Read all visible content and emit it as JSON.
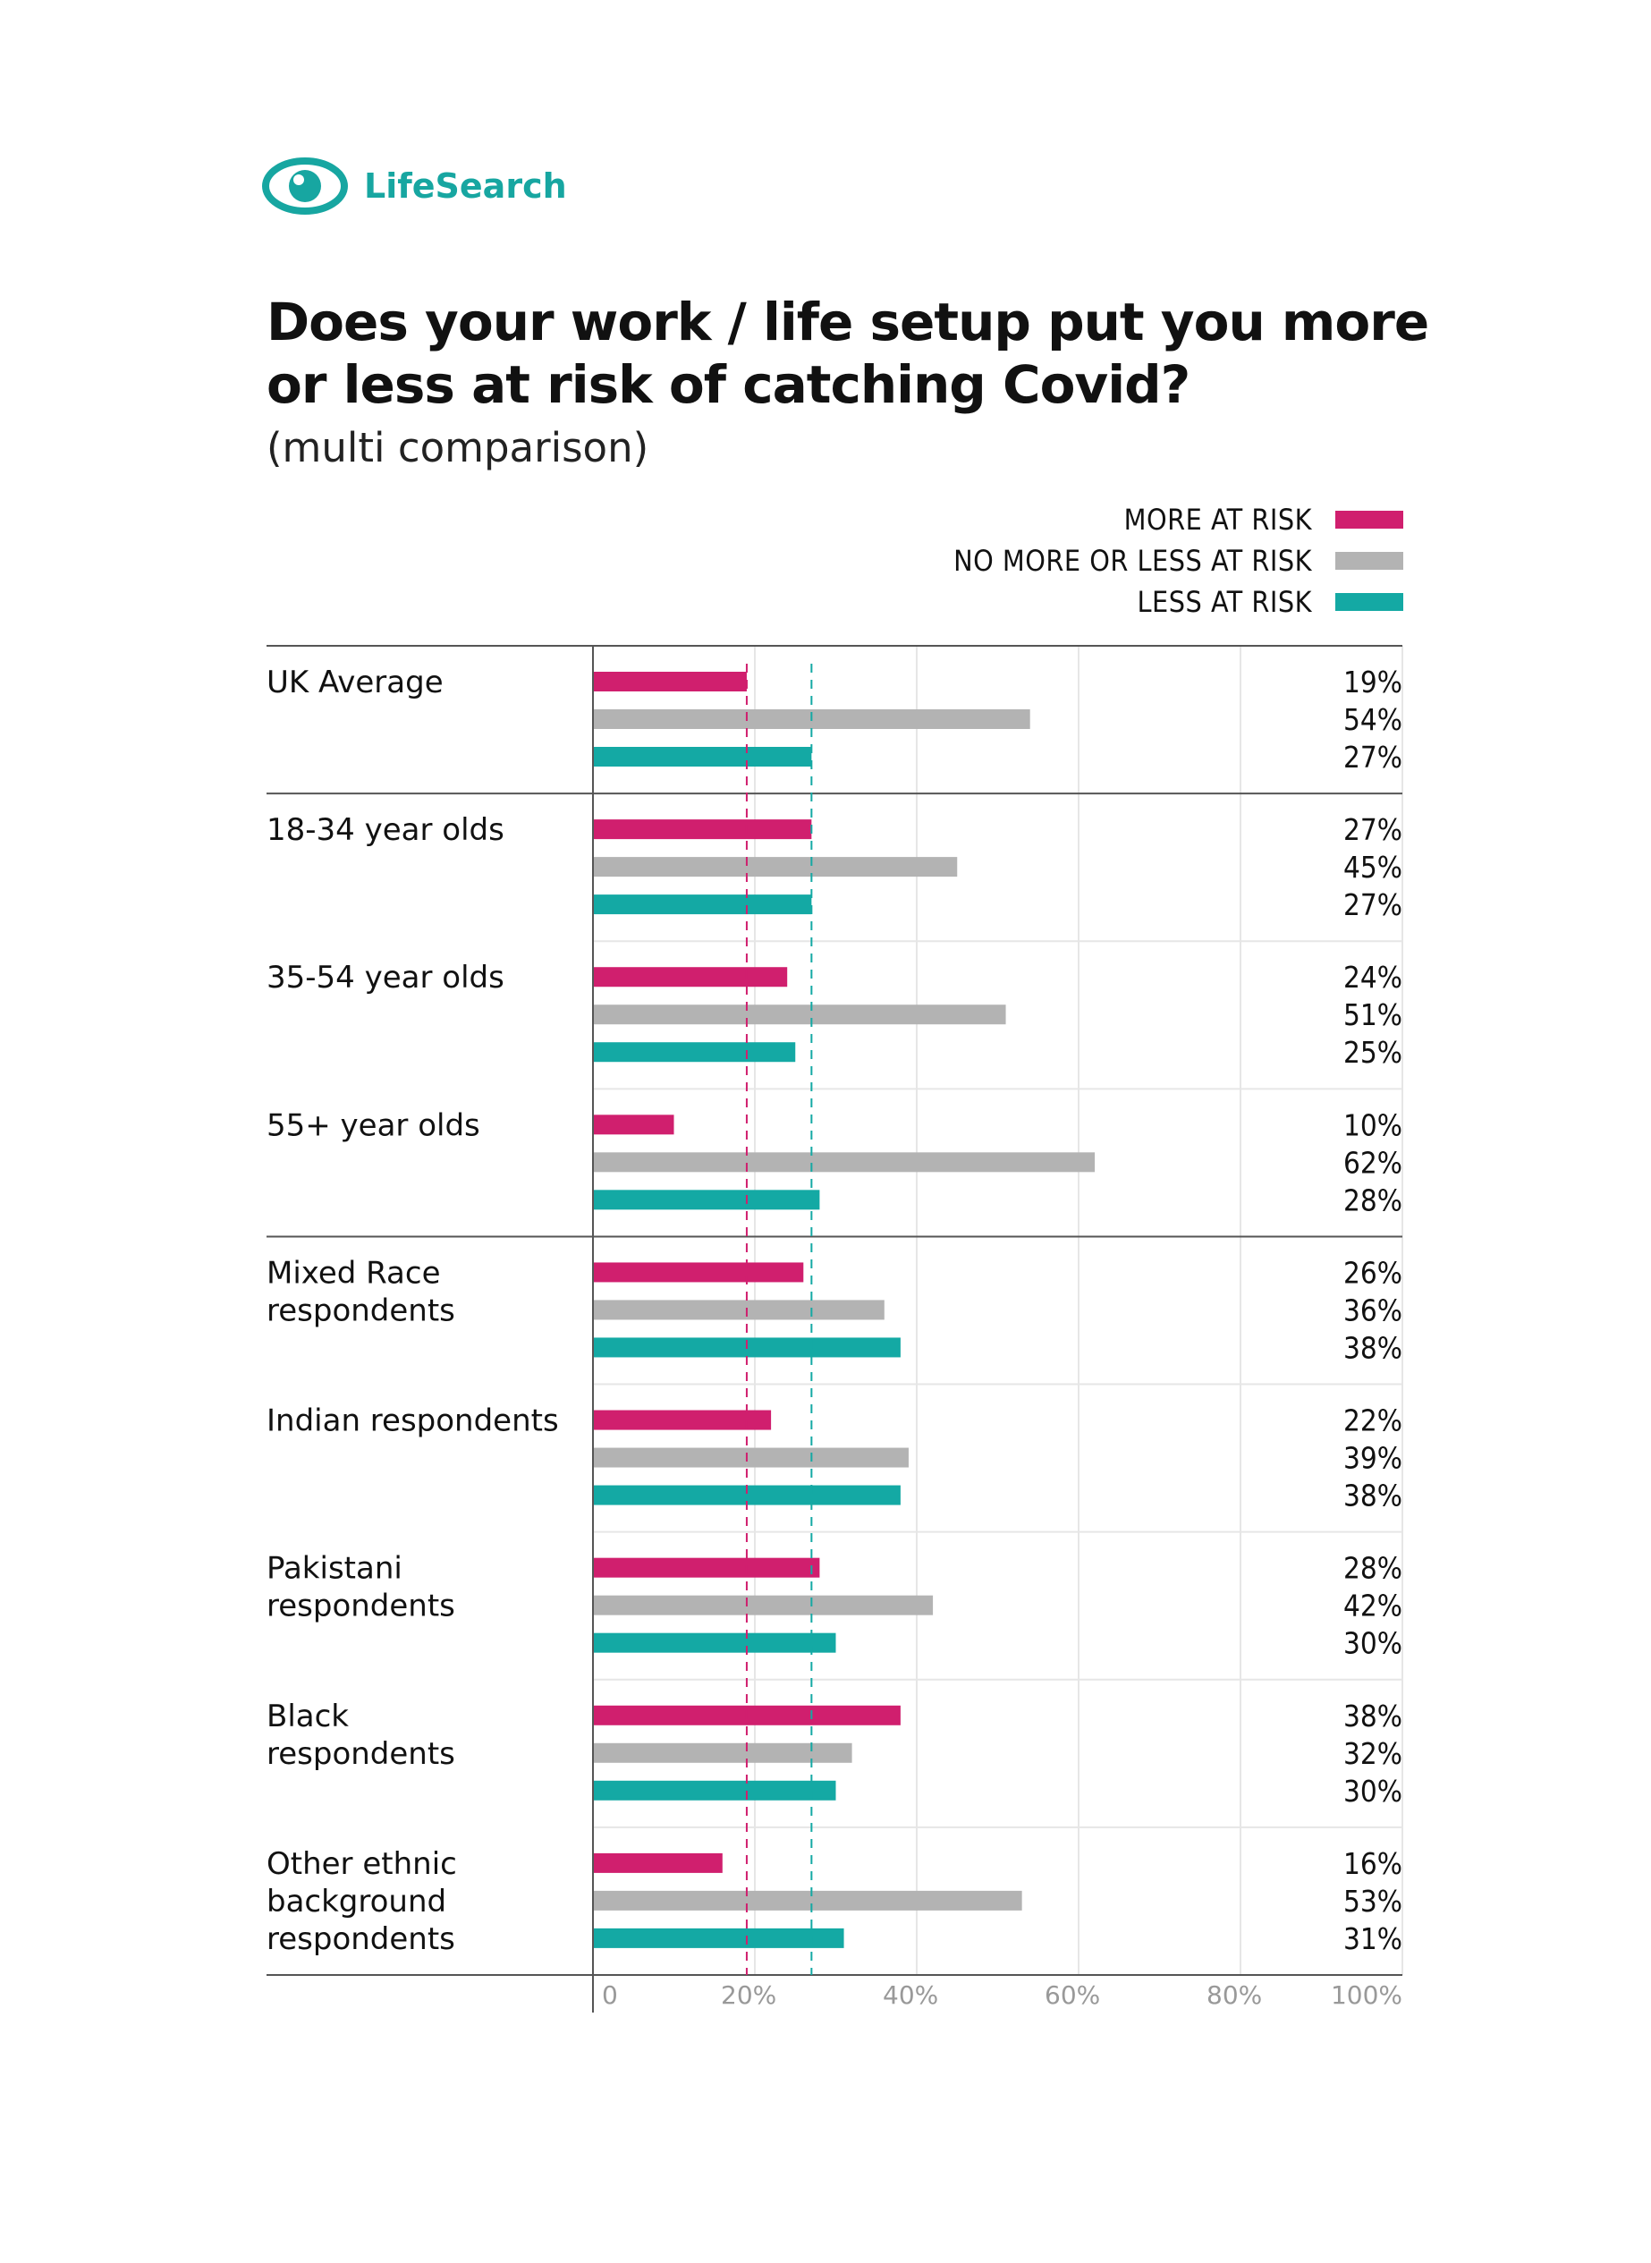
{
  "brand": {
    "name": "LifeSearch",
    "color": "#17a6a1",
    "icon": "eye-icon"
  },
  "title": "Does your work / life setup put you more or less at risk of catching Covid?",
  "subtitle": "(multi comparison)",
  "legend": [
    {
      "label": "MORE AT RISK",
      "color": "#d01f6e"
    },
    {
      "label": "NO MORE OR LESS AT RISK",
      "color": "#b3b3b3"
    },
    {
      "label": "LESS AT RISK",
      "color": "#14a9a4"
    }
  ],
  "chart_data": {
    "type": "bar",
    "orientation": "horizontal",
    "title": "Does your work / life setup put you more or less at risk of catching Covid?",
    "subtitle": "(multi comparison)",
    "xlim": [
      0,
      100
    ],
    "ticks": [
      0,
      20,
      40,
      60,
      80,
      100
    ],
    "tick_labels": [
      "0",
      "20%",
      "40%",
      "60%",
      "80%",
      "100%"
    ],
    "reference_lines": [
      {
        "name": "UK average more at risk",
        "value": 19,
        "color": "#d01f6e"
      },
      {
        "name": "UK average less at risk",
        "value": 27,
        "color": "#14a9a4"
      }
    ],
    "group_dividers_after": [
      0,
      3
    ],
    "categories": [
      [
        "UK Average"
      ],
      [
        "18-34 year olds"
      ],
      [
        "35-54 year olds"
      ],
      [
        "55+ year olds"
      ],
      [
        "Mixed Race",
        "respondents"
      ],
      [
        "Indian respondents"
      ],
      [
        "Pakistani",
        "respondents"
      ],
      [
        "Black",
        "respondents"
      ],
      [
        "Other ethnic",
        "background",
        "respondents"
      ]
    ],
    "series": [
      {
        "name": "MORE AT RISK",
        "color": "#d01f6e",
        "values": [
          19,
          27,
          24,
          10,
          26,
          22,
          28,
          38,
          16
        ]
      },
      {
        "name": "NO MORE OR LESS AT RISK",
        "color": "#b3b3b3",
        "values": [
          54,
          45,
          51,
          62,
          36,
          39,
          42,
          32,
          53
        ]
      },
      {
        "name": "LESS AT RISK",
        "color": "#14a9a4",
        "values": [
          27,
          27,
          25,
          28,
          38,
          38,
          30,
          30,
          31
        ]
      }
    ]
  }
}
